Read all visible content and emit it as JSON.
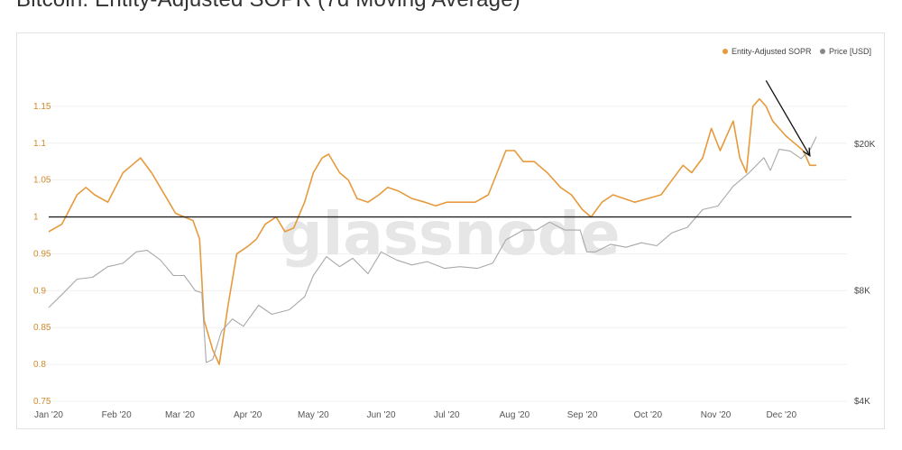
{
  "page": {
    "title": "Bitcoin: Entity-Adjusted SOPR (7d Moving Average)"
  },
  "watermark": "glassnode",
  "colors": {
    "sopr": "#e69a3c",
    "price": "#a8a8a8",
    "baseline": "#222222",
    "arrow": "#111111"
  },
  "chart_data": {
    "type": "line",
    "title": "Bitcoin: Entity-Adjusted SOPR (7d Moving Average)",
    "legend_position": "top-right",
    "grid": true,
    "x_range": [
      "2020-01-01",
      "2020-12-31"
    ],
    "x_ticks": [
      "Jan '20",
      "Feb '20",
      "Mar '20",
      "Apr '20",
      "May '20",
      "Jun '20",
      "Jul '20",
      "Aug '20",
      "Sep '20",
      "Oct '20",
      "Nov '20",
      "Dec '20"
    ],
    "y_left": {
      "range": [
        0.75,
        1.2
      ],
      "ticks": [
        {
          "value": 1.15,
          "label": "1.15"
        },
        {
          "value": 1.1,
          "label": "1.1"
        },
        {
          "value": 1.05,
          "label": "1.05"
        },
        {
          "value": 1.0,
          "label": "1"
        },
        {
          "value": 0.95,
          "label": "0.95"
        },
        {
          "value": 0.9,
          "label": "0.9"
        },
        {
          "value": 0.85,
          "label": "0.85"
        },
        {
          "value": 0.8,
          "label": "0.8"
        },
        {
          "value": 0.75,
          "label": "0.75"
        }
      ]
    },
    "y_right": {
      "scale": "log",
      "range": [
        4000,
        32000
      ],
      "ticks": [
        {
          "value": 20000,
          "label": "$20K"
        },
        {
          "value": 8000,
          "label": "$8K"
        },
        {
          "value": 4000,
          "label": "$4K"
        }
      ]
    },
    "reference_line": 1.0,
    "series": [
      {
        "name": "Entity-Adjusted SOPR",
        "axis": "left",
        "x": [
          "2020-01-01",
          "2020-01-07",
          "2020-01-14",
          "2020-01-18",
          "2020-01-22",
          "2020-01-28",
          "2020-02-04",
          "2020-02-08",
          "2020-02-12",
          "2020-02-17",
          "2020-02-21",
          "2020-02-25",
          "2020-02-28",
          "2020-03-03",
          "2020-03-07",
          "2020-03-10",
          "2020-03-12",
          "2020-03-16",
          "2020-03-19",
          "2020-03-23",
          "2020-03-27",
          "2020-04-01",
          "2020-04-05",
          "2020-04-09",
          "2020-04-14",
          "2020-04-18",
          "2020-04-22",
          "2020-04-27",
          "2020-05-01",
          "2020-05-05",
          "2020-05-08",
          "2020-05-13",
          "2020-05-17",
          "2020-05-21",
          "2020-05-26",
          "2020-05-31",
          "2020-06-04",
          "2020-06-09",
          "2020-06-15",
          "2020-06-21",
          "2020-06-26",
          "2020-07-01",
          "2020-07-07",
          "2020-07-14",
          "2020-07-20",
          "2020-07-24",
          "2020-07-28",
          "2020-08-01",
          "2020-08-05",
          "2020-08-10",
          "2020-08-16",
          "2020-08-22",
          "2020-08-27",
          "2020-09-01",
          "2020-09-05",
          "2020-09-10",
          "2020-09-15",
          "2020-09-20",
          "2020-09-25",
          "2020-10-01",
          "2020-10-07",
          "2020-10-12",
          "2020-10-17",
          "2020-10-21",
          "2020-10-26",
          "2020-10-30",
          "2020-11-03",
          "2020-11-06",
          "2020-11-09",
          "2020-11-12",
          "2020-11-15",
          "2020-11-18",
          "2020-11-21",
          "2020-11-24",
          "2020-11-27",
          "2020-11-30",
          "2020-12-03",
          "2020-12-07",
          "2020-12-11",
          "2020-12-14",
          "2020-12-17"
        ],
        "values": [
          0.98,
          0.99,
          1.03,
          1.04,
          1.03,
          1.02,
          1.06,
          1.07,
          1.08,
          1.06,
          1.04,
          1.02,
          1.005,
          1.0,
          0.995,
          0.97,
          0.86,
          0.82,
          0.8,
          0.88,
          0.95,
          0.96,
          0.97,
          0.99,
          1.0,
          0.98,
          0.985,
          1.02,
          1.06,
          1.08,
          1.085,
          1.06,
          1.05,
          1.025,
          1.02,
          1.03,
          1.04,
          1.035,
          1.025,
          1.02,
          1.015,
          1.02,
          1.02,
          1.02,
          1.03,
          1.06,
          1.09,
          1.09,
          1.075,
          1.075,
          1.06,
          1.04,
          1.03,
          1.01,
          1.0,
          1.02,
          1.03,
          1.025,
          1.02,
          1.025,
          1.03,
          1.05,
          1.07,
          1.06,
          1.08,
          1.12,
          1.09,
          1.11,
          1.13,
          1.08,
          1.06,
          1.15,
          1.16,
          1.15,
          1.13,
          1.12,
          1.11,
          1.1,
          1.09,
          1.07,
          1.07
        ]
      },
      {
        "name": "Price [USD]",
        "axis": "right",
        "x": [
          "2020-01-01",
          "2020-01-07",
          "2020-01-14",
          "2020-01-21",
          "2020-01-28",
          "2020-02-04",
          "2020-02-10",
          "2020-02-15",
          "2020-02-21",
          "2020-02-27",
          "2020-03-03",
          "2020-03-08",
          "2020-03-11",
          "2020-03-13",
          "2020-03-16",
          "2020-03-20",
          "2020-03-25",
          "2020-03-30",
          "2020-04-06",
          "2020-04-12",
          "2020-04-20",
          "2020-04-27",
          "2020-05-01",
          "2020-05-07",
          "2020-05-13",
          "2020-05-19",
          "2020-05-26",
          "2020-06-01",
          "2020-06-08",
          "2020-06-15",
          "2020-06-22",
          "2020-06-30",
          "2020-07-07",
          "2020-07-15",
          "2020-07-22",
          "2020-07-28",
          "2020-08-05",
          "2020-08-11",
          "2020-08-17",
          "2020-08-24",
          "2020-08-31",
          "2020-09-03",
          "2020-09-07",
          "2020-09-14",
          "2020-09-21",
          "2020-09-28",
          "2020-10-05",
          "2020-10-12",
          "2020-10-19",
          "2020-10-26",
          "2020-11-02",
          "2020-11-09",
          "2020-11-16",
          "2020-11-23",
          "2020-11-26",
          "2020-11-30",
          "2020-12-05",
          "2020-12-10",
          "2020-12-14",
          "2020-12-17"
        ],
        "values": [
          7200,
          7800,
          8600,
          8700,
          9300,
          9500,
          10200,
          10300,
          9700,
          8800,
          8800,
          8000,
          7900,
          5100,
          5200,
          6200,
          6700,
          6400,
          7300,
          6900,
          7100,
          7700,
          8800,
          9900,
          9300,
          9800,
          8900,
          10200,
          9700,
          9400,
          9600,
          9200,
          9300,
          9200,
          9500,
          11000,
          11700,
          11700,
          12300,
          11700,
          11700,
          10200,
          10200,
          10700,
          10500,
          10800,
          10600,
          11500,
          11900,
          13300,
          13600,
          15400,
          16700,
          18400,
          17000,
          19400,
          19200,
          18300,
          19300,
          21000
        ]
      }
    ]
  },
  "legend": [
    {
      "name": "Entity-Adjusted SOPR",
      "color": "#e69a3c"
    },
    {
      "name": "Price [USD]",
      "color": "#888888"
    }
  ],
  "annotations": [
    {
      "type": "arrow",
      "from": [
        "2020-11-24",
        1.185
      ],
      "to": [
        "2020-12-14",
        1.083
      ]
    }
  ]
}
